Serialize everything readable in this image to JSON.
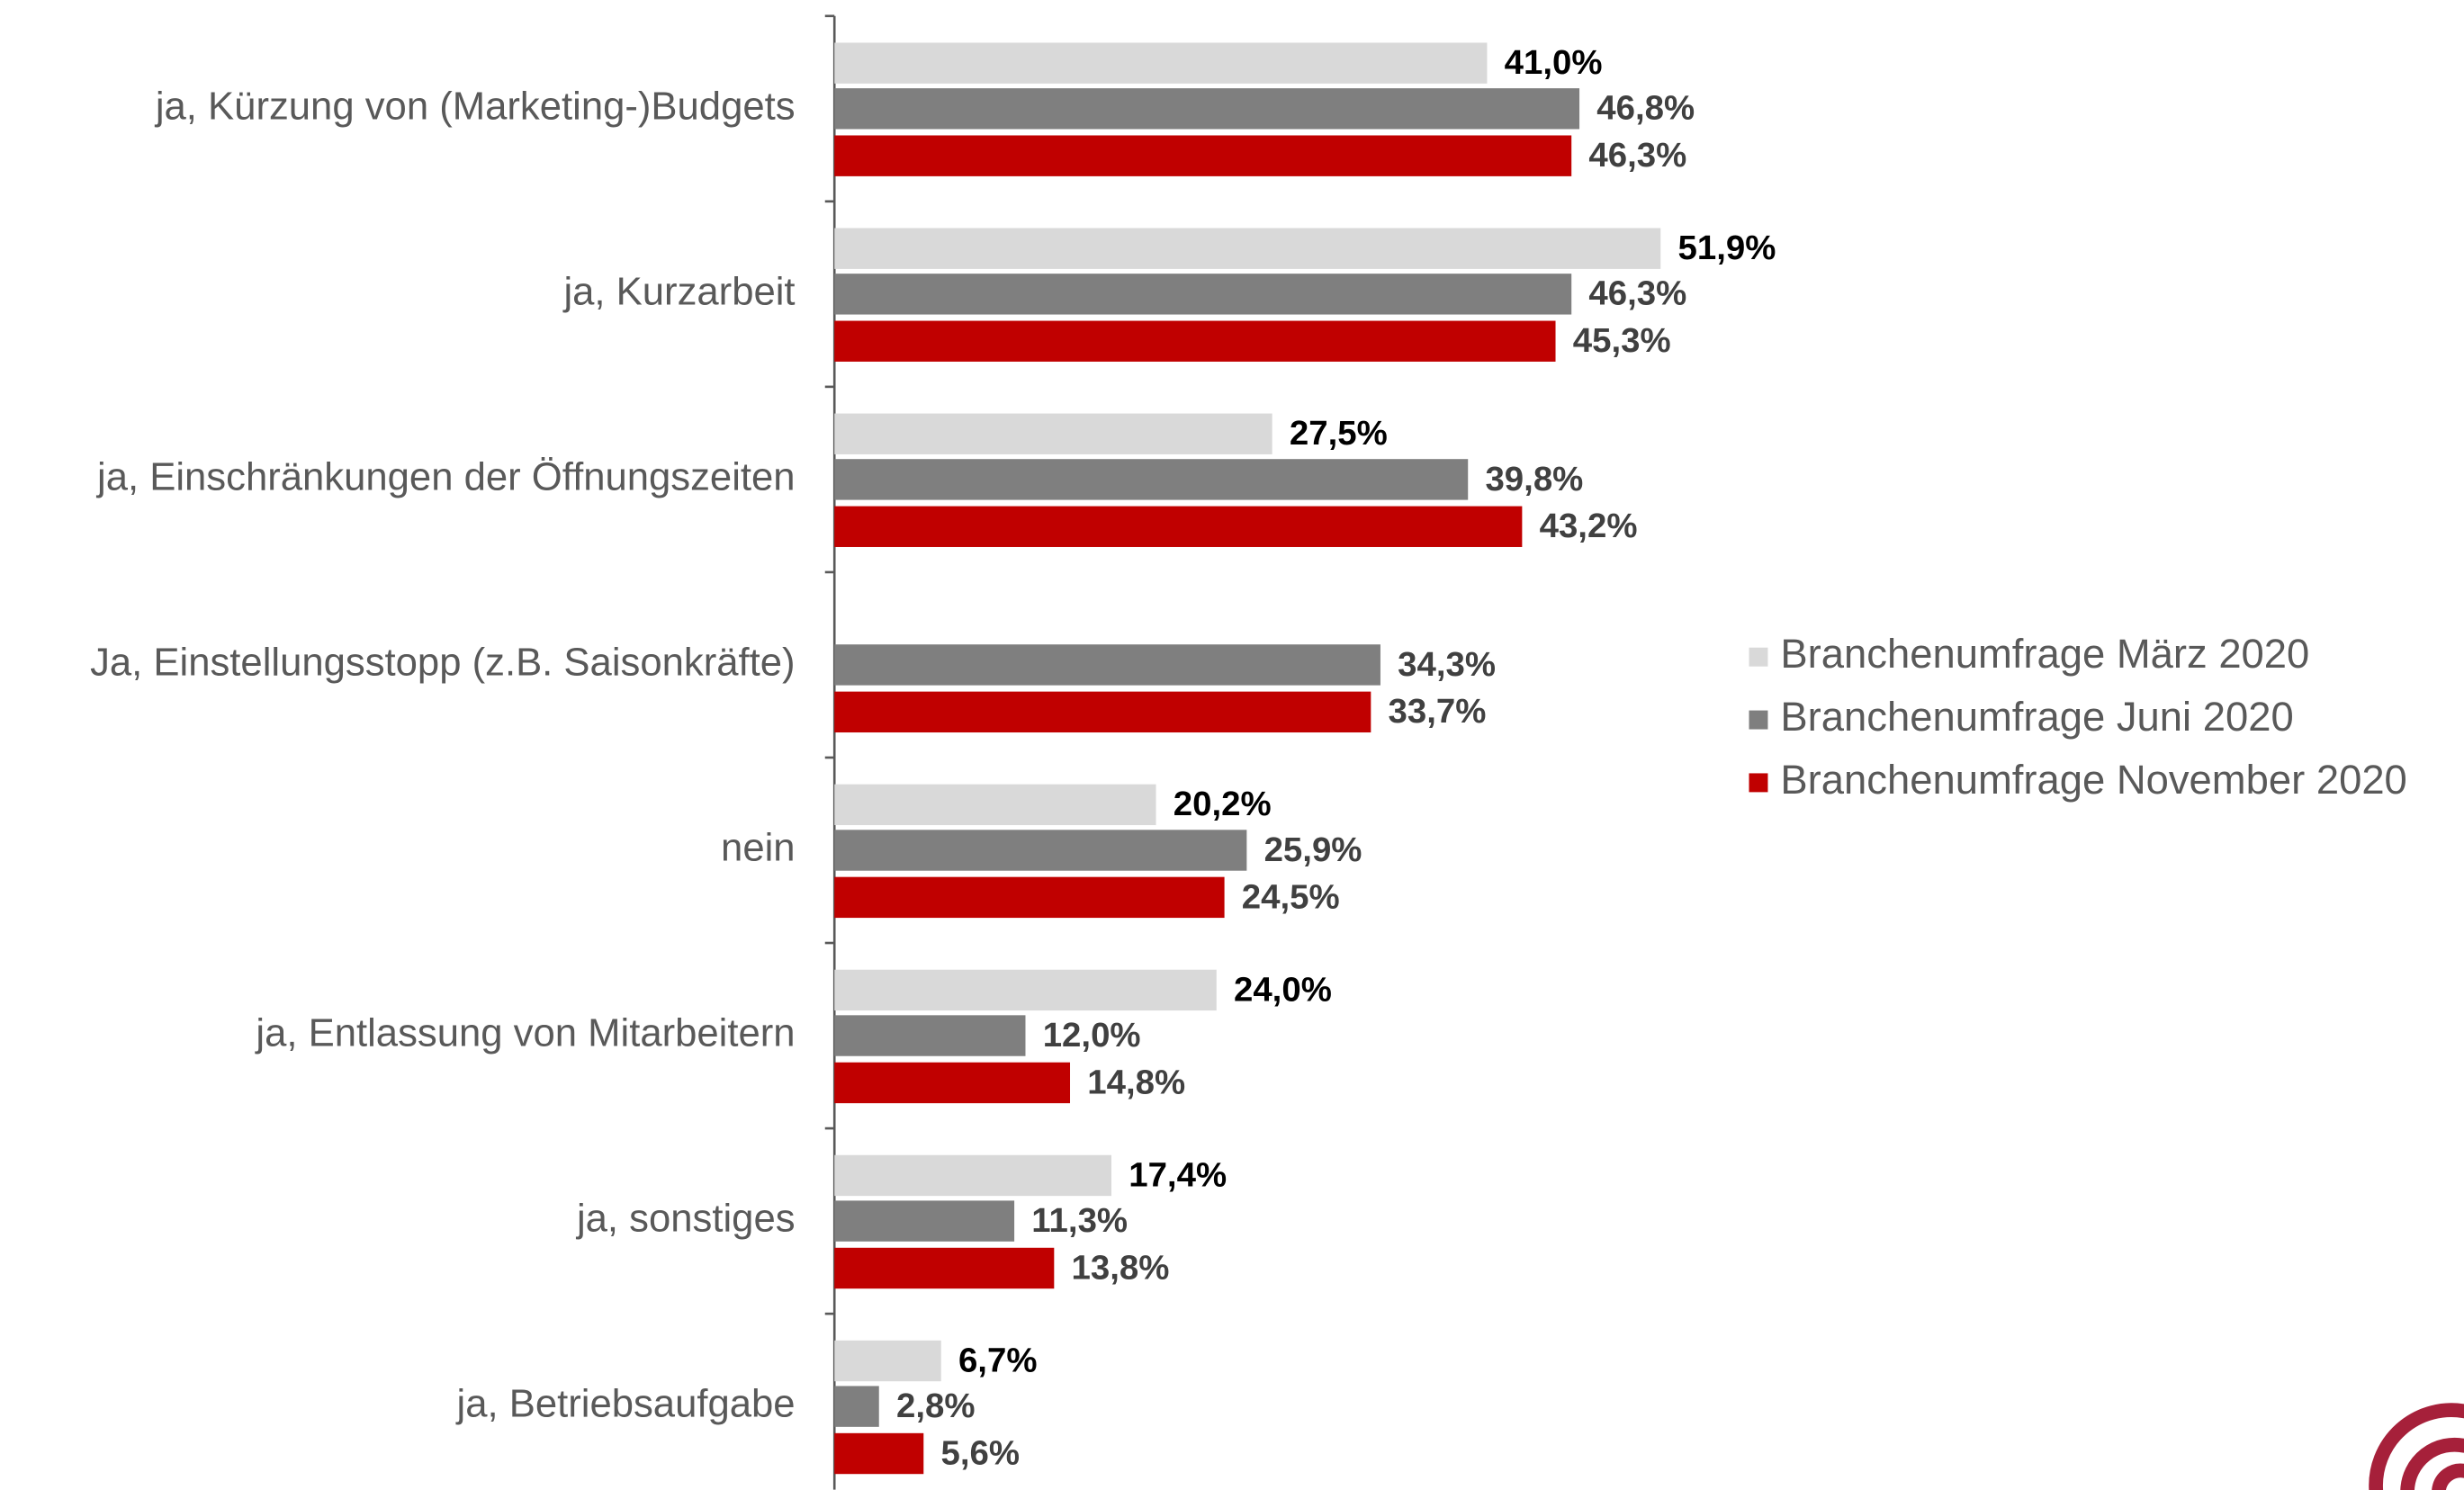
{
  "chart_data": {
    "type": "hbar",
    "categories": [
      "ja, Kürzung von (Marketing-)Budgets",
      "ja, Kurzarbeit",
      "ja, Einschränkungen der Öffnungszeiten",
      "Ja, Einstellungsstopp (z.B. Saisonkräfte)",
      "nein",
      "ja, Entlassung von Mitarbeitern",
      "ja, sonstiges",
      "ja, Betriebsaufgabe"
    ],
    "series": [
      {
        "name": "Branchenumfrage März 2020",
        "color": "#d9d9d9",
        "label_color": "#000000",
        "values": [
          41.0,
          51.9,
          27.5,
          null,
          20.2,
          24.0,
          17.4,
          6.7
        ],
        "value_labels": [
          "41,0%",
          "51,9%",
          "27,5%",
          null,
          "20,2%",
          "24,0%",
          "17,4%",
          "6,7%"
        ]
      },
      {
        "name": "Branchenumfrage Juni 2020",
        "color": "#7f7f7f",
        "label_color": "#404040",
        "values": [
          46.8,
          46.3,
          39.8,
          34.3,
          25.9,
          12.0,
          11.3,
          2.8
        ],
        "value_labels": [
          "46,8%",
          "46,3%",
          "39,8%",
          "34,3%",
          "25,9%",
          "12,0%",
          "11,3%",
          "2,8%"
        ]
      },
      {
        "name": "Branchenumfrage November 2020",
        "color": "#c00000",
        "label_color": "#404040",
        "values": [
          46.3,
          45.3,
          43.2,
          33.7,
          24.5,
          14.8,
          13.8,
          5.6
        ],
        "value_labels": [
          "46,3%",
          "45,3%",
          "43,2%",
          "33,7%",
          "24,5%",
          "14,8%",
          "13,8%",
          "5,6%"
        ]
      }
    ]
  }
}
